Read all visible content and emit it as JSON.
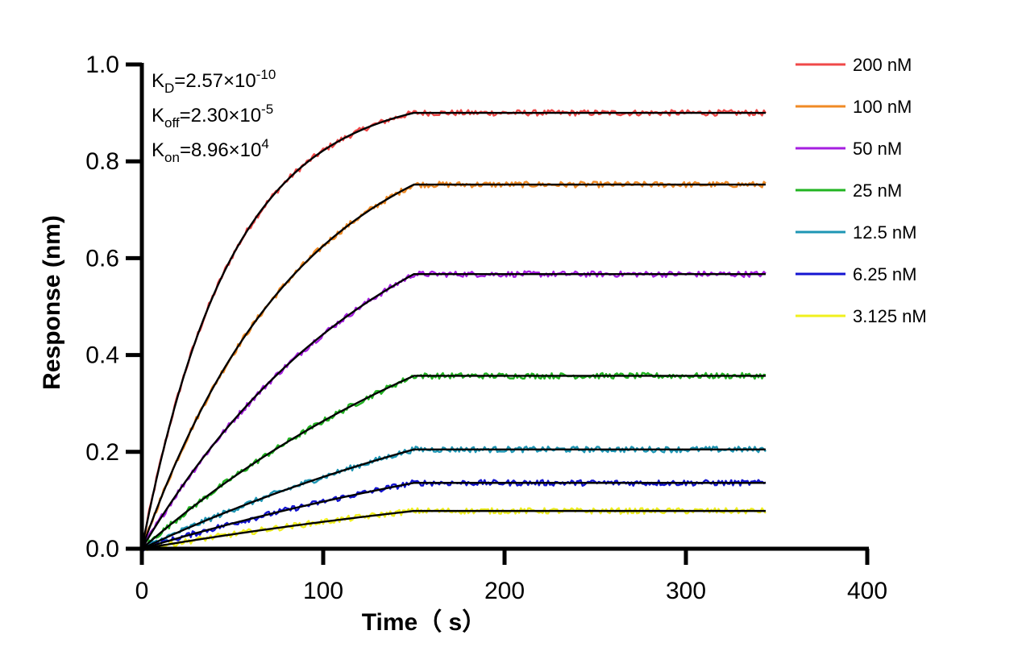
{
  "chart_data": {
    "type": "line",
    "xlabel": "Time（ s）",
    "ylabel": "Response (nm)",
    "xlim": [
      0,
      400
    ],
    "ylim": [
      0,
      1.0
    ],
    "x_ticks": [
      0,
      100,
      200,
      300,
      400
    ],
    "y_ticks": [
      0.0,
      0.2,
      0.4,
      0.6,
      0.8,
      1.0
    ],
    "x_tick_labels": [
      "0",
      "100",
      "200",
      "300",
      "400"
    ],
    "y_tick_labels": [
      "0.0",
      "0.2",
      "0.4",
      "0.6",
      "0.8",
      "1.0"
    ],
    "grid": false,
    "legend_position": "top-right",
    "association_end": 150,
    "dissociation_end": 344,
    "fit_color": "#000000",
    "annotations": [
      {
        "sym": "K",
        "sub": "D",
        "mant": "=2.57×10",
        "exp": "-10"
      },
      {
        "sym": "K",
        "sub": "off",
        "mant": "=2.30×10",
        "exp": "-5"
      },
      {
        "sym": "K",
        "sub": "on",
        "mant": "=8.96×10",
        "exp": "4"
      }
    ],
    "series": [
      {
        "name": "200 nM",
        "color": "#f04848",
        "plateau": 0.9,
        "k": 0.0205
      },
      {
        "name": "100 nM",
        "color": "#f08a24",
        "plateau": 0.752,
        "k": 0.0115
      },
      {
        "name": "50 nM",
        "color": "#a51ee0",
        "plateau": 0.567,
        "k": 0.0075
      },
      {
        "name": "25 nM",
        "color": "#22b422",
        "plateau": 0.357,
        "k": 0.0045
      },
      {
        "name": "12.5 nM",
        "color": "#1e96b4",
        "plateau": 0.205,
        "k": 0.0035
      },
      {
        "name": "6.25 nM",
        "color": "#1414d2",
        "plateau": 0.136,
        "k": 0.003
      },
      {
        "name": "3.125 nM",
        "color": "#f0f01e",
        "plateau": 0.078,
        "k": 0.0028
      }
    ]
  }
}
